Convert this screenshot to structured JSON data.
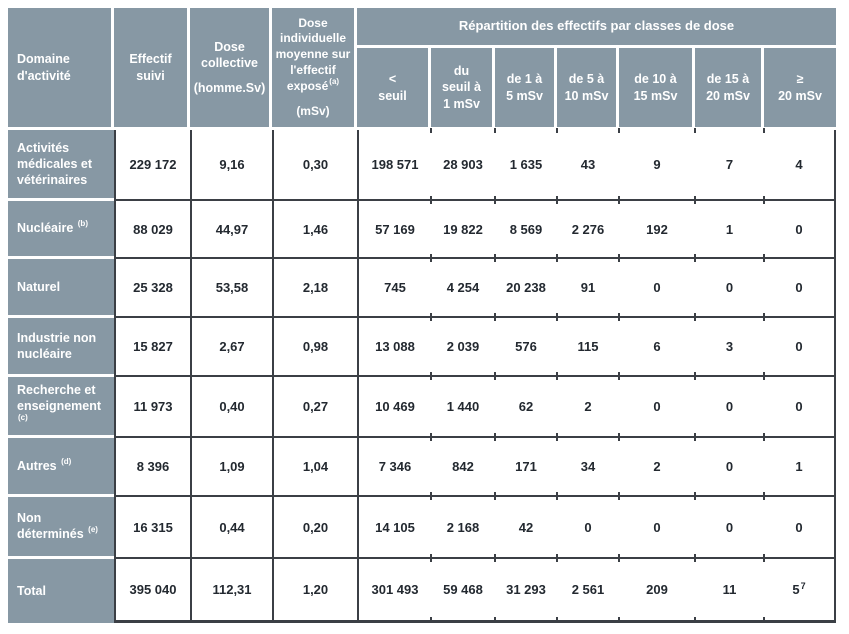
{
  "colors": {
    "header_bg": "#8798a4",
    "header_text": "#ffffff",
    "cell_text": "#232930",
    "border": "#3b3f45",
    "gap": "#ffffff"
  },
  "table": {
    "header": {
      "domain": "Domaine\nd'activité",
      "effectif": "Effectif\nsuivi",
      "dose_collective": "Dose\ncollective",
      "dose_collective_unit": "(homme.Sv)",
      "dose_individuelle": "Dose\nindividuelle\nmoyenne sur\nl'effectif\nexposé",
      "dose_individuelle_sup": "(a)",
      "dose_individuelle_unit": "(mSv)",
      "repartition_title": "Répartition des effectifs par classes de dose",
      "classes": [
        "<\nseuil",
        "du\nseuil à\n1 mSv",
        "de 1 à\n5 mSv",
        "de 5 à\n10 mSv",
        "de 10 à\n15 mSv",
        "de 15 à\n20 mSv",
        "≥\n20 mSv"
      ]
    },
    "rows": [
      {
        "label": "Activités\nmédicales et\nvétérinaires",
        "sup": "",
        "values": [
          "229 172",
          "9,16",
          "0,30",
          "198 571",
          "28 903",
          "1 635",
          "43",
          "9",
          "7",
          "4"
        ]
      },
      {
        "label": "Nucléaire ",
        "sup": "(b)",
        "values": [
          "88 029",
          "44,97",
          "1,46",
          "57 169",
          "19 822",
          "8 569",
          "2 276",
          "192",
          "1",
          "0"
        ]
      },
      {
        "label": "Naturel",
        "sup": "",
        "values": [
          "25 328",
          "53,58",
          "2,18",
          "745",
          "4 254",
          "20 238",
          "91",
          "0",
          "0",
          "0"
        ]
      },
      {
        "label": "Industrie non\nnucléaire",
        "sup": "",
        "values": [
          "15 827",
          "2,67",
          "0,98",
          "13 088",
          "2 039",
          "576",
          "115",
          "6",
          "3",
          "0"
        ]
      },
      {
        "label": "Recherche et\nenseignement\n",
        "sup": "(c)",
        "values": [
          "11 973",
          "0,40",
          "0,27",
          "10 469",
          "1 440",
          "62",
          "2",
          "0",
          "0",
          "0"
        ]
      },
      {
        "label": "Autres ",
        "sup": "(d)",
        "values": [
          "8 396",
          "1,09",
          "1,04",
          "7 346",
          "842",
          "171",
          "34",
          "2",
          "0",
          "1"
        ]
      },
      {
        "label": "Non\ndéterminés ",
        "sup": "(e)",
        "values": [
          "16 315",
          "0,44",
          "0,20",
          "14 105",
          "2 168",
          "42",
          "0",
          "0",
          "0",
          "0"
        ]
      },
      {
        "label": "Total",
        "sup": "",
        "values": [
          "395 040",
          "112,31",
          "1,20",
          "301 493",
          "59 468",
          "31 293",
          "2 561",
          "209",
          "11",
          "5"
        ],
        "last_sup": "7",
        "total": true
      }
    ]
  }
}
